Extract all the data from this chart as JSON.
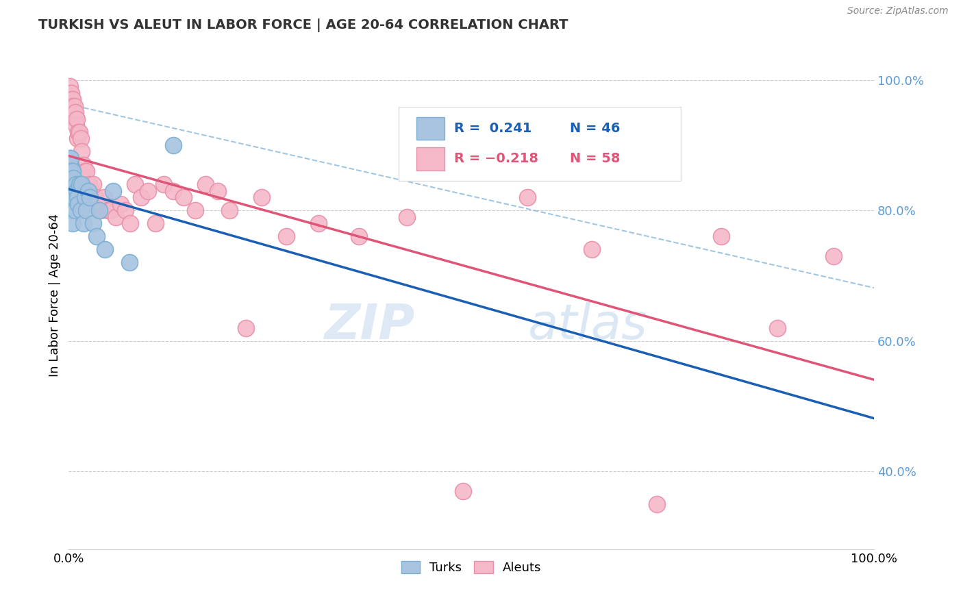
{
  "title": "TURKISH VS ALEUT IN LABOR FORCE | AGE 20-64 CORRELATION CHART",
  "source": "Source: ZipAtlas.com",
  "ylabel": "In Labor Force | Age 20-64",
  "watermark_zip": "ZIP",
  "watermark_atlas": "atlas",
  "turks_R": 0.241,
  "turks_N": 46,
  "aleuts_R": -0.218,
  "aleuts_N": 58,
  "turks_color": "#a8c4e0",
  "turks_edge": "#7aafd4",
  "aleuts_color": "#f4b8c8",
  "aleuts_edge": "#e890aa",
  "trend_turks_color": "#1a5fb4",
  "trend_aleuts_color": "#e05577",
  "dashed_color": "#7aafd4",
  "bg_color": "#ffffff",
  "grid_color": "#cccccc",
  "right_tick_color": "#5b9bd5",
  "turks_x": [
    0.001,
    0.001,
    0.001,
    0.001,
    0.001,
    0.001,
    0.002,
    0.002,
    0.002,
    0.002,
    0.002,
    0.002,
    0.002,
    0.003,
    0.003,
    0.003,
    0.003,
    0.004,
    0.004,
    0.004,
    0.005,
    0.005,
    0.005,
    0.006,
    0.006,
    0.007,
    0.008,
    0.009,
    0.01,
    0.011,
    0.012,
    0.013,
    0.015,
    0.016,
    0.018,
    0.02,
    0.022,
    0.024,
    0.026,
    0.03,
    0.035,
    0.038,
    0.045,
    0.055,
    0.075,
    0.13
  ],
  "turks_y": [
    0.83,
    0.84,
    0.85,
    0.86,
    0.87,
    0.88,
    0.82,
    0.83,
    0.84,
    0.85,
    0.86,
    0.87,
    0.88,
    0.82,
    0.83,
    0.85,
    0.86,
    0.8,
    0.84,
    0.86,
    0.78,
    0.83,
    0.86,
    0.82,
    0.85,
    0.82,
    0.8,
    0.84,
    0.83,
    0.82,
    0.81,
    0.84,
    0.8,
    0.84,
    0.78,
    0.82,
    0.8,
    0.83,
    0.82,
    0.78,
    0.76,
    0.8,
    0.74,
    0.83,
    0.72,
    0.9
  ],
  "aleuts_x": [
    0.001,
    0.002,
    0.003,
    0.004,
    0.004,
    0.005,
    0.005,
    0.006,
    0.007,
    0.008,
    0.008,
    0.009,
    0.01,
    0.011,
    0.012,
    0.013,
    0.015,
    0.016,
    0.018,
    0.02,
    0.022,
    0.025,
    0.028,
    0.03,
    0.033,
    0.036,
    0.04,
    0.044,
    0.048,
    0.052,
    0.058,
    0.064,
    0.07,
    0.076,
    0.082,
    0.09,
    0.098,
    0.108,
    0.118,
    0.13,
    0.143,
    0.157,
    0.17,
    0.185,
    0.2,
    0.22,
    0.24,
    0.27,
    0.31,
    0.36,
    0.42,
    0.49,
    0.57,
    0.65,
    0.73,
    0.81,
    0.88,
    0.95
  ],
  "aleuts_y": [
    0.99,
    0.98,
    0.98,
    0.97,
    0.95,
    0.97,
    0.96,
    0.95,
    0.96,
    0.94,
    0.95,
    0.93,
    0.94,
    0.91,
    0.92,
    0.92,
    0.91,
    0.89,
    0.87,
    0.86,
    0.86,
    0.84,
    0.83,
    0.84,
    0.82,
    0.81,
    0.8,
    0.82,
    0.8,
    0.8,
    0.79,
    0.81,
    0.8,
    0.78,
    0.84,
    0.82,
    0.83,
    0.78,
    0.84,
    0.83,
    0.82,
    0.8,
    0.84,
    0.83,
    0.8,
    0.62,
    0.82,
    0.76,
    0.78,
    0.76,
    0.79,
    0.37,
    0.82,
    0.74,
    0.35,
    0.76,
    0.62,
    0.73
  ],
  "ylim": [
    0.28,
    1.06
  ],
  "xlim": [
    0.0,
    1.0
  ],
  "yticks": [
    0.4,
    0.6,
    0.8,
    1.0
  ],
  "ytick_labels": [
    "40.0%",
    "60.0%",
    "80.0%",
    "100.0%"
  ],
  "xtick_labels": [
    "0.0%",
    "100.0%"
  ],
  "legend_R_turks": "R =  0.241",
  "legend_N_turks": "N = 46",
  "legend_R_aleuts": "R = −0.218",
  "legend_N_aleuts": "N = 58"
}
